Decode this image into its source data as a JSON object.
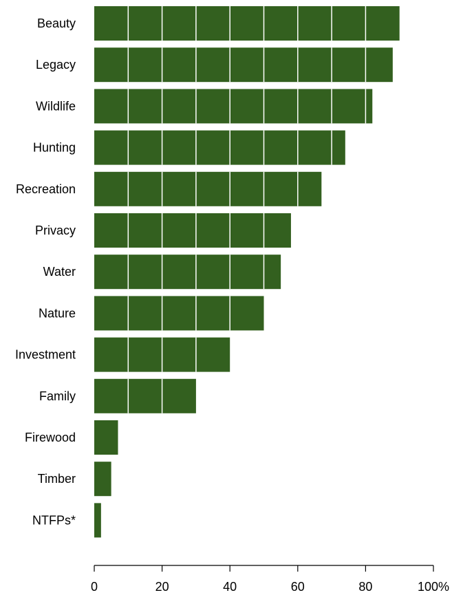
{
  "chart_data": {
    "type": "bar",
    "orientation": "horizontal",
    "categories": [
      "Beauty",
      "Legacy",
      "Wildlife",
      "Hunting",
      "Recreation",
      "Privacy",
      "Water",
      "Nature",
      "Investment",
      "Family",
      "Firewood",
      "Timber",
      "NTFPs*"
    ],
    "values": [
      90,
      88,
      82,
      74,
      67,
      58,
      55,
      50,
      40,
      30,
      7,
      5,
      2
    ],
    "xlim": [
      0,
      100
    ],
    "xticks": [
      0,
      20,
      40,
      60,
      80,
      100
    ],
    "xtick_labels": [
      "0",
      "20",
      "40",
      "60",
      "80",
      "100%"
    ],
    "gridlines": "vertical white lines every 10 inside bars",
    "bar_color": "#33601f",
    "title": "",
    "xlabel": "",
    "ylabel": ""
  }
}
